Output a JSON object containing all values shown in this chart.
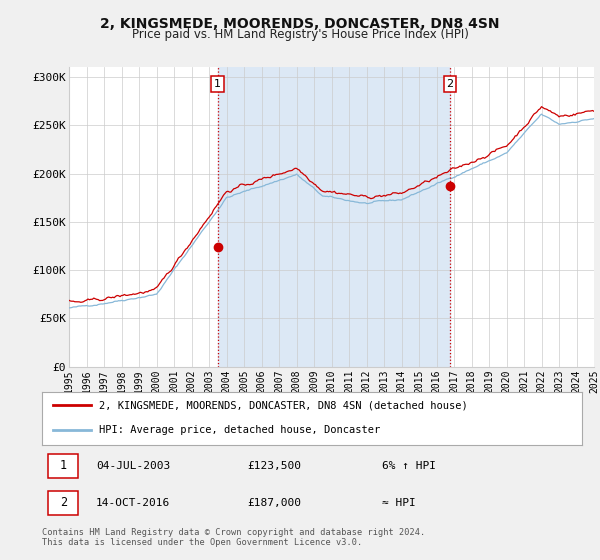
{
  "title": "2, KINGSMEDE, MOORENDS, DONCASTER, DN8 4SN",
  "subtitle": "Price paid vs. HM Land Registry's House Price Index (HPI)",
  "bg_color": "#f0f0f0",
  "plot_bg_color": "#ffffff",
  "shaded_region_color": "#dce8f5",
  "red_line_color": "#cc0000",
  "blue_line_color": "#88b8d8",
  "grid_color": "#cccccc",
  "sale1_year": 2003.5,
  "sale1_price": 123500,
  "sale2_year": 2016.78,
  "sale2_price": 187000,
  "legend_line1": "2, KINGSMEDE, MOORENDS, DONCASTER, DN8 4SN (detached house)",
  "legend_line2": "HPI: Average price, detached house, Doncaster",
  "table_row1": [
    "1",
    "04-JUL-2003",
    "£123,500",
    "6% ↑ HPI"
  ],
  "table_row2": [
    "2",
    "14-OCT-2016",
    "£187,000",
    "≈ HPI"
  ],
  "footer": "Contains HM Land Registry data © Crown copyright and database right 2024.\nThis data is licensed under the Open Government Licence v3.0.",
  "ylim": [
    0,
    310000
  ],
  "yticks": [
    0,
    50000,
    100000,
    150000,
    200000,
    250000,
    300000
  ],
  "ytick_labels": [
    "£0",
    "£50K",
    "£100K",
    "£150K",
    "£200K",
    "£250K",
    "£300K"
  ],
  "xstart": 1995,
  "xend": 2025
}
